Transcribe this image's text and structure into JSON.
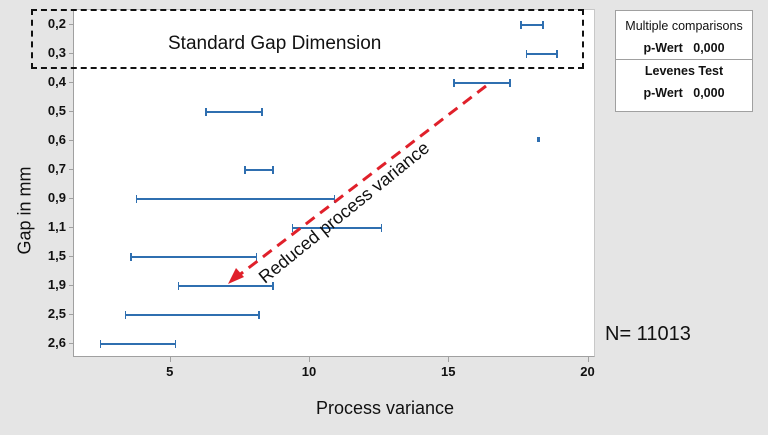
{
  "chart_data": {
    "type": "interval",
    "title": "",
    "xlabel": "Process variance",
    "ylabel": "Gap in mm",
    "xlim": [
      1.1,
      20.3
    ],
    "xticks": [
      "5",
      "10",
      "15",
      "20"
    ],
    "categories": [
      "0,2",
      "0,3",
      "0,4",
      "0,5",
      "0,6",
      "0,7",
      "0,9",
      "1,1",
      "1,5",
      "1,9",
      "2,5",
      "2,6"
    ],
    "intervals": [
      {
        "gap": "0,2",
        "low": 17.6,
        "high": 18.4
      },
      {
        "gap": "0,3",
        "low": 17.8,
        "high": 18.9
      },
      {
        "gap": "0,4",
        "low": 15.2,
        "high": 17.2
      },
      {
        "gap": "0,5",
        "low": 6.3,
        "high": 8.3
      },
      {
        "gap": "0,6",
        "low": 18.2,
        "high": 18.25
      },
      {
        "gap": "0,7",
        "low": 7.7,
        "high": 8.7
      },
      {
        "gap": "0,9",
        "low": 3.8,
        "high": 10.9
      },
      {
        "gap": "1,1",
        "low": 9.4,
        "high": 12.6
      },
      {
        "gap": "1,5",
        "low": 3.6,
        "high": 8.1
      },
      {
        "gap": "1,9",
        "low": 5.3,
        "high": 8.7
      },
      {
        "gap": "2,5",
        "low": 3.4,
        "high": 8.2
      },
      {
        "gap": "2,6",
        "low": 2.5,
        "high": 5.2
      }
    ],
    "annotations": [
      "Standard Gap Dimension",
      "Reduced process variance",
      "N= 11013"
    ],
    "grid": false,
    "series_color": "#2f6fb0",
    "arrow_color": "#e0202a"
  },
  "yticks": [
    "0,2",
    "0,3",
    "0,4",
    "0,5",
    "0,6",
    "0,7",
    "0,9",
    "1,1",
    "1,5",
    "1,9",
    "2,5",
    "2,6"
  ],
  "xticks": [
    "5",
    "10",
    "15",
    "20"
  ],
  "axes": {
    "xlabel": "Process variance",
    "ylabel": "Gap in mm"
  },
  "annotations": {
    "standard_gap": "Standard Gap Dimension",
    "arrow_label": "Reduced process variance",
    "sample_size": "N= 11013"
  },
  "stats": {
    "mc_title": "Multiple comparisons",
    "mc_label": "p-Wert",
    "mc_value": "0,000",
    "lev_title": "Levenes Test",
    "lev_label": "p-Wert",
    "lev_value": "0,000"
  }
}
